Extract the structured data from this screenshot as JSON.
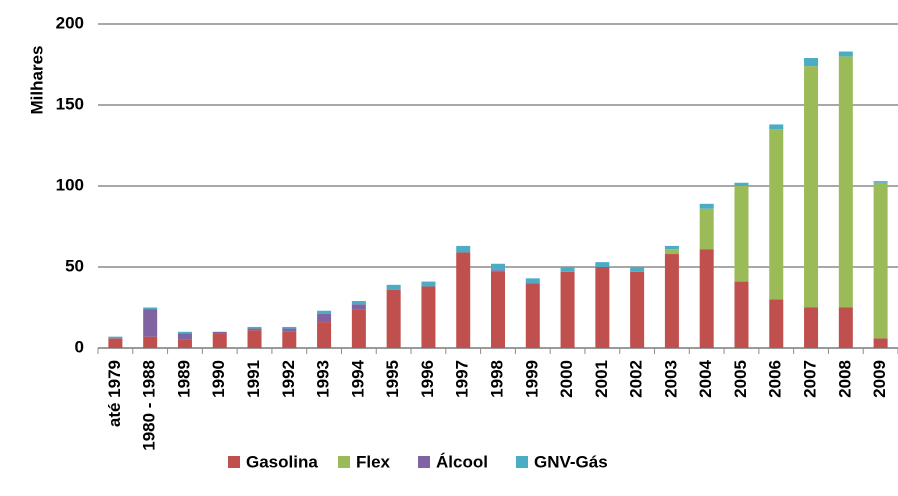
{
  "chart_data": {
    "type": "bar",
    "stacked": true,
    "ylabel": "Milhares",
    "categories": [
      "até 1979",
      "1980 - 1988",
      "1989",
      "1990",
      "1991",
      "1992",
      "1993",
      "1994",
      "1995",
      "1996",
      "1997",
      "1998",
      "1999",
      "2000",
      "2001",
      "2002",
      "2003",
      "2004",
      "2005",
      "2006",
      "2007",
      "2008",
      "2009"
    ],
    "series": [
      {
        "name": "Gasolina",
        "color": "#c0504d",
        "values": [
          6,
          7,
          5,
          9,
          11,
          10,
          16,
          24,
          36,
          38,
          59,
          47,
          40,
          47,
          50,
          47,
          58,
          61,
          41,
          30,
          25,
          25,
          6
        ]
      },
      {
        "name": "Flex",
        "color": "#9bbb59",
        "values": [
          0,
          0,
          0,
          0,
          0,
          0,
          0,
          0,
          0,
          0,
          0,
          0,
          0,
          0,
          0,
          0,
          3,
          25,
          59,
          105,
          149,
          155,
          96
        ]
      },
      {
        "name": "Álcool",
        "color": "#8064a2",
        "values": [
          0,
          17,
          4,
          1,
          1,
          2,
          5,
          3,
          0,
          0,
          0,
          1,
          0,
          0,
          0,
          0,
          0,
          0,
          0,
          0,
          0,
          0,
          0
        ]
      },
      {
        "name": "GNV-Gás",
        "color": "#4bacc6",
        "values": [
          1,
          1,
          1,
          0,
          1,
          1,
          2,
          2,
          3,
          3,
          4,
          4,
          3,
          3,
          3,
          3,
          2,
          3,
          2,
          3,
          5,
          3,
          1
        ]
      }
    ],
    "ylim": [
      0,
      200
    ],
    "yticks": [
      0,
      50,
      100,
      150,
      200
    ],
    "grid": true,
    "legend": "bottom"
  }
}
